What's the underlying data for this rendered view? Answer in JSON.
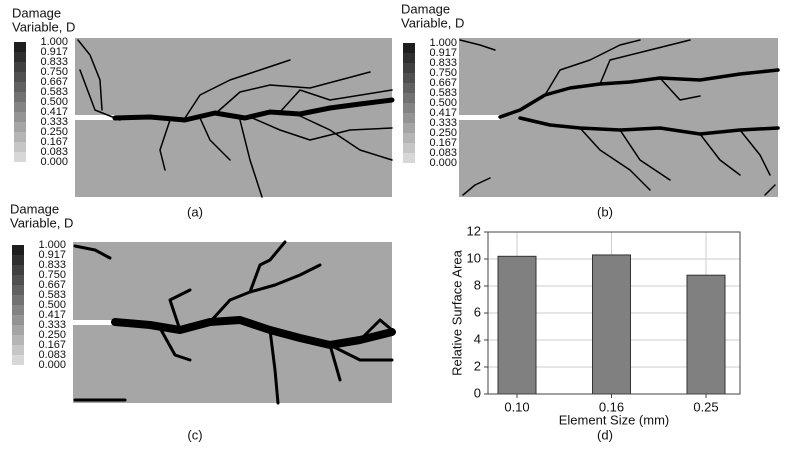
{
  "panels": [
    {
      "legend_title": [
        "Damage",
        "Variable, D"
      ],
      "legend_labels": [
        "1.000",
        "0.917",
        "0.833",
        "0.750",
        "0.667",
        "0.583",
        "0.500",
        "0.417",
        "0.333",
        "0.250",
        "0.167",
        "0.083",
        "0.000"
      ],
      "label": "(a)"
    },
    {
      "legend_title": [
        "Damage",
        "Variable, D"
      ],
      "legend_labels": [
        "1.000",
        "0.917",
        "0.833",
        "0.750",
        "0.667",
        "0.583",
        "0.500",
        "0.417",
        "0.333",
        "0.250",
        "0.167",
        "0.083",
        "0.000"
      ],
      "label": "(b)"
    },
    {
      "legend_title": [
        "Damage",
        "Variable, D"
      ],
      "legend_labels": [
        "1.000",
        "0.917",
        "0.833",
        "0.750",
        "0.667",
        "0.583",
        "0.500",
        "0.417",
        "0.333",
        "0.250",
        "0.167",
        "0.083",
        "0.000"
      ],
      "label": "(c)"
    }
  ],
  "chart_data": {
    "type": "bar",
    "categories": [
      "0.10",
      "0.16",
      "0.25"
    ],
    "values": [
      10.2,
      10.3,
      8.8
    ],
    "color": "#808080",
    "ylim": [
      0,
      12
    ],
    "yticks": [
      0,
      2,
      4,
      6,
      8,
      10,
      12
    ],
    "grid": true,
    "xlabel": "Element Size (mm)",
    "ylabel": "Relative Surface Area",
    "label": "(d)"
  }
}
